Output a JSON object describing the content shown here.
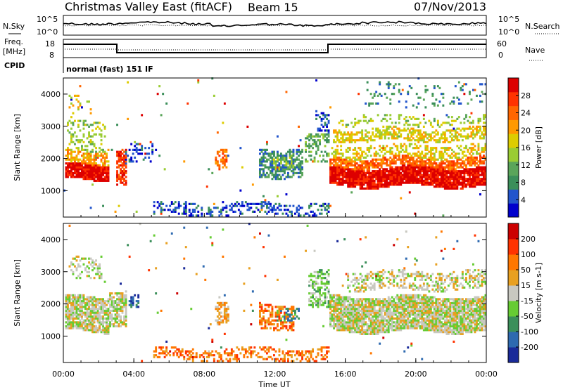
{
  "header": {
    "title": "Christmas Valley East (fitACF)",
    "beam": "Beam 15",
    "date": "07/Nov/2013"
  },
  "strips": {
    "nsky_label": "N.Sky",
    "nsky_ticks": [
      "10^5",
      "10^0"
    ],
    "nsearch_label": "N.Search",
    "nsearch_ticks": [
      "10^5",
      "10^0"
    ],
    "freq_label": "Freq.",
    "freq_unit": "[MHz]",
    "freq_ticks": [
      "18",
      "8"
    ],
    "nave_label": "Nave",
    "nave_ticks": [
      "60",
      "0"
    ],
    "cpid_label": "CPID",
    "cpid_text": "normal (fast) 151 IF"
  },
  "chart_data": [
    {
      "type": "heatmap",
      "panel": "power",
      "ylabel": "Slant Range [km]",
      "yticks": [
        "4000",
        "3000",
        "2000",
        "1000"
      ],
      "ylim": [
        180,
        4500
      ],
      "xlim": [
        0,
        24
      ],
      "colorbar": {
        "label": "Power [dB]",
        "ticks": [
          "28",
          "24",
          "20",
          "16",
          "12",
          "8",
          "4"
        ],
        "colors": [
          "#0000cc",
          "#2255cc",
          "#3b8f5a",
          "#5aa55a",
          "#9acc33",
          "#ddcc00",
          "#ff9900",
          "#ff6600",
          "#ff3300",
          "#dd0000"
        ]
      }
    },
    {
      "type": "heatmap",
      "panel": "velocity",
      "ylabel": "Slant Range [km]",
      "yticks": [
        "4000",
        "3000",
        "2000",
        "1000"
      ],
      "ylim": [
        180,
        4500
      ],
      "xlim": [
        0,
        24
      ],
      "xlabel": "Time UT",
      "xticks": [
        "00:00",
        "04:00",
        "08:00",
        "12:00",
        "16:00",
        "20:00",
        "00:00"
      ],
      "colorbar": {
        "label": "Velocity [m s-1]",
        "ticks": [
          "200",
          "100",
          "50",
          "15",
          "-15",
          "-50",
          "-100",
          "-200"
        ],
        "colors": [
          "#1a2a99",
          "#2e6ab0",
          "#3b8f5a",
          "#66cc33",
          "#c8c8c0",
          "#e8a020",
          "#ff7700",
          "#ff3300",
          "#cc0000"
        ]
      }
    }
  ]
}
